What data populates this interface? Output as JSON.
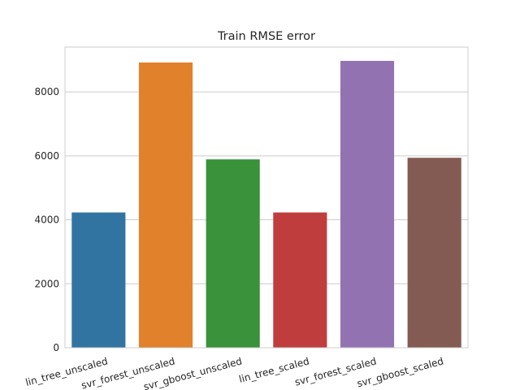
{
  "chart_data": {
    "type": "bar",
    "title": "Train RMSE error",
    "xlabel": "",
    "ylabel": "",
    "categories": [
      "lin_tree_unscaled",
      "svr_forest_unscaled",
      "svr_gboost_unscaled",
      "lin_tree_scaled",
      "svr_forest_scaled",
      "svr_gboost_scaled"
    ],
    "values": [
      4230,
      8920,
      5890,
      4230,
      8970,
      5940
    ],
    "colors": [
      "#3274a1",
      "#e1812c",
      "#3a923a",
      "#c03d3e",
      "#9372b2",
      "#845b53"
    ],
    "ylim": [
      0,
      9400
    ],
    "yticks": [
      0,
      2000,
      4000,
      6000,
      8000
    ],
    "grid": "horizontal",
    "legend": "none"
  }
}
